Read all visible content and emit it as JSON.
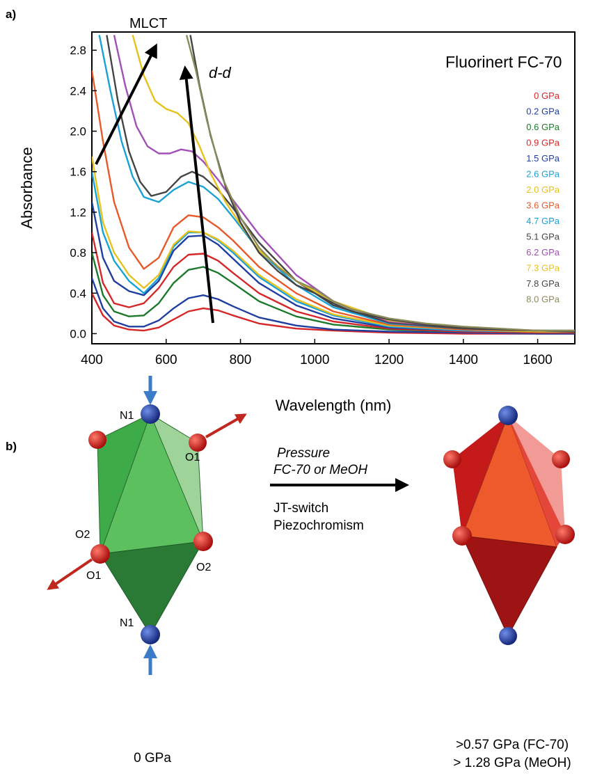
{
  "panel_a": {
    "label": "a)",
    "annotations": {
      "mlct": "MLCT",
      "dd": "d-d",
      "medium": "Fluorinert FC-70"
    }
  },
  "panel_b": {
    "label": "b)",
    "atoms": {
      "n1_top": "N1",
      "o1_right": "O1",
      "o2_left": "O2",
      "o1_left": "O1",
      "o2_right": "O2",
      "n1_bottom": "N1"
    },
    "arrow_text": {
      "pressure": "Pressure",
      "medium": "FC-70 or MeOH",
      "jt": "JT-switch",
      "piezo": "Piezochromism"
    },
    "left_caption": "0 GPa",
    "right_caption_1": ">0.57 GPa (FC-70)",
    "right_caption_2": "> 1.28 GPa (MeOH)",
    "colors": {
      "left_octahedron": "#3aa845",
      "right_octahedron": "#e8452a",
      "nitrogen": "#1f3ea0",
      "oxygen": "#e01a1a",
      "compress_arrow": "#3b7bc8",
      "stretch_arrow": "#c0281f"
    }
  },
  "chart_data": {
    "type": "line",
    "xlabel": "Wavelength (nm)",
    "ylabel": "Absorbance",
    "xlim": [
      400,
      1700
    ],
    "ylim": [
      -0.1,
      2.98
    ],
    "xticks": [
      "400",
      "600",
      "800",
      "1000",
      "1200",
      "1400",
      "1600"
    ],
    "yticks": [
      "0.0",
      "0.4",
      "0.8",
      "1.2",
      "1.6",
      "2.0",
      "2.4",
      "2.8"
    ],
    "grid": false,
    "legend_position": "top-right",
    "series": [
      {
        "name": "0 GPa",
        "color": "#d62728",
        "x": [
          400,
          430,
          460,
          500,
          540,
          580,
          620,
          660,
          700,
          740,
          780,
          850,
          950,
          1050,
          1200,
          1400,
          1600,
          1700
        ],
        "y": [
          0.4,
          0.18,
          0.08,
          0.04,
          0.03,
          0.06,
          0.14,
          0.22,
          0.25,
          0.23,
          0.18,
          0.1,
          0.05,
          0.03,
          0.01,
          0.0,
          0.0,
          0.0
        ]
      },
      {
        "name": "0.2 GPa",
        "color": "#1f3ea0",
        "x": [
          400,
          430,
          460,
          500,
          540,
          580,
          620,
          660,
          700,
          740,
          780,
          850,
          950,
          1050,
          1200,
          1400,
          1600,
          1700
        ],
        "y": [
          0.55,
          0.25,
          0.12,
          0.07,
          0.07,
          0.13,
          0.25,
          0.35,
          0.38,
          0.34,
          0.27,
          0.16,
          0.08,
          0.04,
          0.02,
          0.01,
          0.0,
          0.0
        ]
      },
      {
        "name": "0.6 GPa",
        "color": "#1c7a2c",
        "x": [
          400,
          430,
          460,
          500,
          540,
          580,
          620,
          660,
          700,
          740,
          780,
          850,
          950,
          1050,
          1200,
          1400,
          1600,
          1700
        ],
        "y": [
          0.8,
          0.38,
          0.22,
          0.17,
          0.18,
          0.3,
          0.5,
          0.63,
          0.66,
          0.6,
          0.5,
          0.32,
          0.17,
          0.09,
          0.04,
          0.02,
          0.01,
          0.01
        ]
      },
      {
        "name": "0.9 GPa",
        "color": "#d62728",
        "x": [
          400,
          430,
          460,
          500,
          540,
          580,
          620,
          660,
          700,
          740,
          780,
          850,
          950,
          1050,
          1200,
          1400,
          1600,
          1700
        ],
        "y": [
          1.0,
          0.5,
          0.3,
          0.26,
          0.3,
          0.45,
          0.66,
          0.78,
          0.79,
          0.72,
          0.6,
          0.4,
          0.22,
          0.12,
          0.05,
          0.02,
          0.01,
          0.01
        ]
      },
      {
        "name": "1.5 GPa",
        "color": "#1f3ea0",
        "x": [
          400,
          430,
          460,
          500,
          540,
          580,
          620,
          660,
          700,
          740,
          780,
          850,
          950,
          1050,
          1200,
          1400,
          1600,
          1700
        ],
        "y": [
          1.3,
          0.75,
          0.52,
          0.42,
          0.38,
          0.52,
          0.82,
          0.96,
          0.97,
          0.88,
          0.74,
          0.5,
          0.28,
          0.15,
          0.06,
          0.03,
          0.02,
          0.02
        ]
      },
      {
        "name": "2.6 GPa",
        "color": "#1aa1d6",
        "x": [
          400,
          430,
          460,
          500,
          540,
          580,
          620,
          660,
          700,
          740,
          780,
          850,
          950,
          1050,
          1200,
          1400,
          1600,
          1700
        ],
        "y": [
          1.6,
          1.0,
          0.72,
          0.52,
          0.4,
          0.55,
          0.86,
          1.0,
          1.0,
          0.92,
          0.8,
          0.56,
          0.32,
          0.18,
          0.07,
          0.03,
          0.02,
          0.02
        ]
      },
      {
        "name": "2.0 GPa",
        "color": "#e8c21c",
        "x": [
          400,
          430,
          460,
          500,
          540,
          580,
          620,
          660,
          700,
          740,
          780,
          850,
          950,
          1050,
          1200,
          1400,
          1600,
          1700
        ],
        "y": [
          1.75,
          1.1,
          0.8,
          0.58,
          0.45,
          0.58,
          0.88,
          1.01,
          1.0,
          0.93,
          0.82,
          0.58,
          0.34,
          0.19,
          0.08,
          0.04,
          0.02,
          0.02
        ]
      },
      {
        "name": "3.6 GPa",
        "color": "#e8592a",
        "x": [
          400,
          430,
          460,
          500,
          540,
          580,
          620,
          660,
          700,
          740,
          780,
          850,
          950,
          1050,
          1200,
          1400,
          1600,
          1700
        ],
        "y": [
          2.6,
          1.9,
          1.3,
          0.85,
          0.64,
          0.75,
          1.05,
          1.17,
          1.15,
          1.05,
          0.92,
          0.66,
          0.4,
          0.22,
          0.09,
          0.04,
          0.03,
          0.02
        ]
      },
      {
        "name": "4.7 GPa",
        "color": "#1aa1d6",
        "x": [
          420,
          450,
          480,
          510,
          540,
          580,
          620,
          660,
          700,
          740,
          780,
          850,
          950,
          1050,
          1200,
          1400,
          1600,
          1700
        ],
        "y": [
          2.95,
          2.4,
          1.9,
          1.55,
          1.35,
          1.3,
          1.42,
          1.5,
          1.45,
          1.33,
          1.15,
          0.82,
          0.48,
          0.26,
          0.1,
          0.05,
          0.03,
          0.02
        ]
      },
      {
        "name": "5.1 GPa",
        "color": "#444444",
        "x": [
          440,
          470,
          500,
          530,
          560,
          600,
          640,
          670,
          700,
          740,
          780,
          850,
          950,
          1050,
          1200,
          1400,
          1600,
          1700
        ],
        "y": [
          2.95,
          2.3,
          1.8,
          1.5,
          1.36,
          1.4,
          1.55,
          1.6,
          1.55,
          1.42,
          1.24,
          0.9,
          0.52,
          0.28,
          0.11,
          0.05,
          0.03,
          0.02
        ]
      },
      {
        "name": "6.2 GPa",
        "color": "#a24fb8",
        "x": [
          460,
          490,
          520,
          550,
          580,
          610,
          640,
          670,
          700,
          740,
          780,
          850,
          950,
          1050,
          1200,
          1400,
          1600,
          1700
        ],
        "y": [
          2.95,
          2.45,
          2.05,
          1.85,
          1.78,
          1.78,
          1.82,
          1.8,
          1.7,
          1.52,
          1.32,
          0.98,
          0.58,
          0.32,
          0.12,
          0.06,
          0.03,
          0.03
        ]
      },
      {
        "name": "7.3 GPa",
        "color": "#e8c21c",
        "x": [
          510,
          540,
          570,
          600,
          630,
          660,
          690,
          720,
          760,
          800,
          850,
          950,
          1050,
          1200,
          1400,
          1600,
          1700
        ],
        "y": [
          2.95,
          2.55,
          2.3,
          2.22,
          2.18,
          2.08,
          1.85,
          1.58,
          1.3,
          1.08,
          0.82,
          0.52,
          0.32,
          0.13,
          0.06,
          0.03,
          0.03
        ]
      },
      {
        "name": "7.8 GPa",
        "color": "#444444",
        "x": [
          665,
          690,
          720,
          760,
          800,
          850,
          900,
          950,
          1000,
          1050,
          1100,
          1200,
          1300,
          1400,
          1500,
          1600,
          1700
        ],
        "y": [
          2.95,
          2.45,
          1.95,
          1.45,
          1.1,
          0.8,
          0.62,
          0.48,
          0.4,
          0.3,
          0.22,
          0.14,
          0.09,
          0.06,
          0.04,
          0.03,
          0.03
        ]
      },
      {
        "name": "8.0 GPa",
        "color": "#8a8a5a",
        "x": [
          655,
          680,
          710,
          750,
          800,
          850,
          900,
          950,
          1000,
          1050,
          1100,
          1200,
          1300,
          1400,
          1500,
          1600,
          1700
        ],
        "y": [
          2.95,
          2.6,
          2.1,
          1.55,
          1.15,
          0.85,
          0.66,
          0.52,
          0.44,
          0.32,
          0.24,
          0.15,
          0.1,
          0.07,
          0.05,
          0.03,
          0.03
        ]
      }
    ]
  }
}
